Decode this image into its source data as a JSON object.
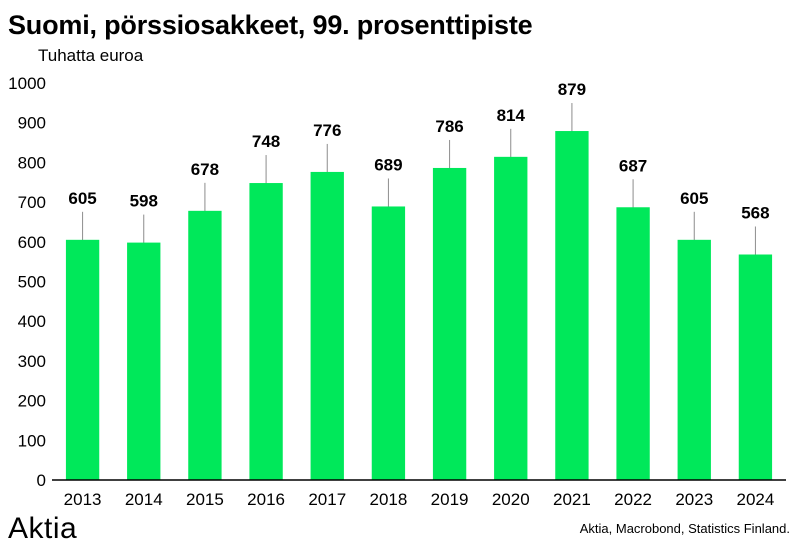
{
  "colors": {
    "bar": "#00e85a",
    "axis": "#000000",
    "leader": "#8c8c8c"
  },
  "brand": {
    "logo_text": "Aktia"
  },
  "source": "Aktia, Macrobond, Statistics Finland.",
  "chart_data": {
    "type": "bar",
    "title": "Suomi, pörssiosakkeet, 99. prosenttipiste",
    "ylabel": "Tuhatta euroa",
    "xlabel": "",
    "categories": [
      "2013",
      "2014",
      "2015",
      "2016",
      "2017",
      "2018",
      "2019",
      "2020",
      "2021",
      "2022",
      "2023",
      "2024"
    ],
    "values": [
      605,
      598,
      678,
      748,
      776,
      689,
      786,
      814,
      879,
      687,
      605,
      568
    ],
    "ylim": [
      0,
      1000
    ],
    "yticks": [
      0,
      100,
      200,
      300,
      400,
      500,
      600,
      700,
      800,
      900,
      1000
    ],
    "grid": false,
    "data_labels": true
  }
}
